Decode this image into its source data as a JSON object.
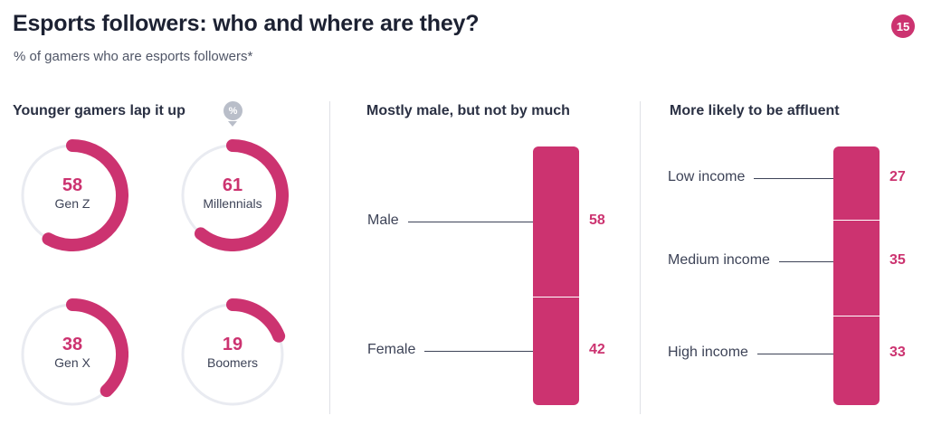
{
  "header": {
    "title": "Esports followers: who and where are they?",
    "subtitle": "% of gamers who are esports followers*",
    "page_number": "15"
  },
  "colors": {
    "accent": "#cc3370",
    "track": "#e9ebf1",
    "text": "#3d4357"
  },
  "chart_data": [
    {
      "type": "donut",
      "title": "Younger gamers lap it up",
      "unit_badge": "%",
      "categories": [
        "Gen Z",
        "Millennials",
        "Gen X",
        "Boomers"
      ],
      "values": [
        58,
        61,
        38,
        19
      ],
      "max": 100
    },
    {
      "type": "bar",
      "orientation": "stacked-vertical",
      "title": "Mostly male, but not by much",
      "categories": [
        "Male",
        "Female"
      ],
      "values": [
        58,
        42
      ]
    },
    {
      "type": "bar",
      "orientation": "stacked-vertical",
      "title": "More likely to be affluent",
      "categories": [
        "Low income",
        "Medium income",
        "High income"
      ],
      "values": [
        27,
        35,
        33
      ]
    }
  ]
}
